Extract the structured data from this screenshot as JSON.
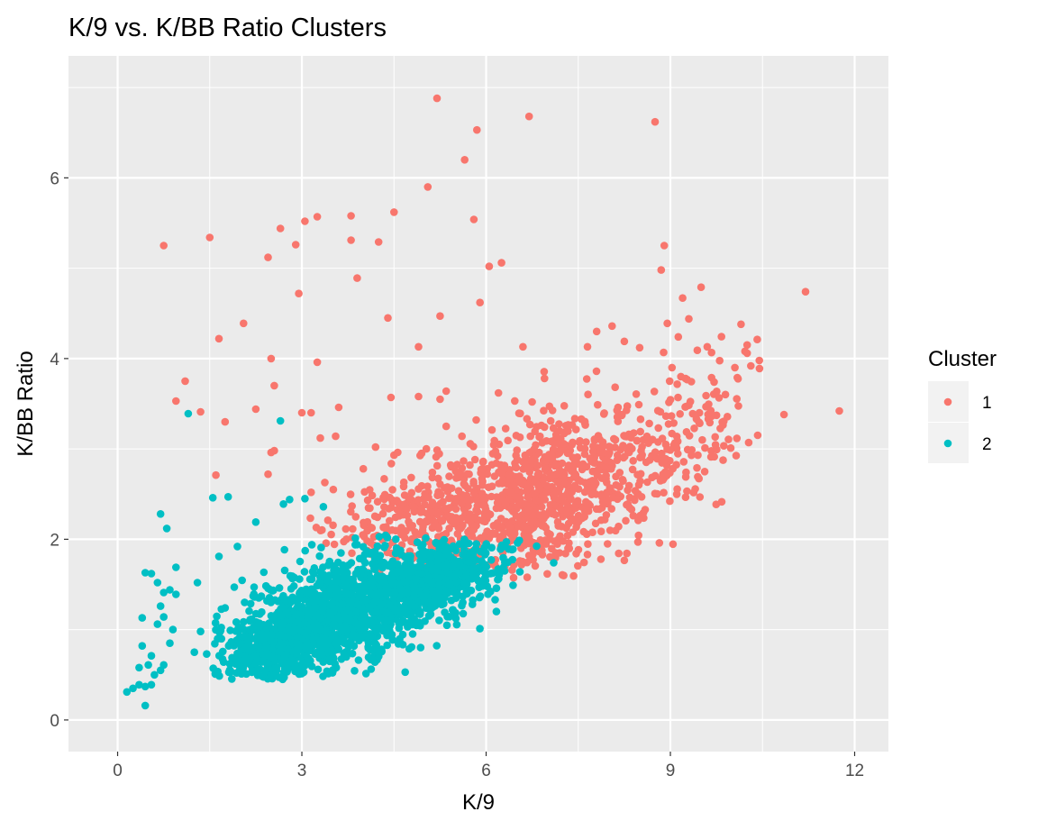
{
  "chart_data": {
    "type": "scatter",
    "title": "K/9 vs. K/BB Ratio Clusters",
    "xlabel": "K/9",
    "ylabel": "K/BB Ratio",
    "xlim": [
      -0.8,
      12.55
    ],
    "ylim": [
      -0.35,
      7.35
    ],
    "x_ticks": [
      0,
      3,
      6,
      9,
      12
    ],
    "y_ticks": [
      0,
      2,
      4,
      6
    ],
    "x_tick_labels": [
      "0",
      "3",
      "6",
      "9",
      "12"
    ],
    "y_tick_labels": [
      "0",
      "2",
      "4",
      "6"
    ],
    "grid": true,
    "legend": {
      "title": "Cluster",
      "position": "right"
    },
    "series": [
      {
        "name": "1",
        "color": "#F8766D",
        "outliers": [
          [
            5.2,
            6.88
          ],
          [
            6.7,
            6.68
          ],
          [
            8.75,
            6.62
          ],
          [
            5.85,
            6.53
          ],
          [
            5.65,
            6.2
          ],
          [
            5.05,
            5.9
          ],
          [
            0.75,
            5.25
          ],
          [
            1.5,
            5.34
          ],
          [
            2.65,
            5.44
          ],
          [
            3.05,
            5.52
          ],
          [
            3.25,
            5.57
          ],
          [
            3.8,
            5.58
          ],
          [
            4.5,
            5.62
          ],
          [
            5.8,
            5.54
          ],
          [
            2.9,
            5.26
          ],
          [
            3.8,
            5.31
          ],
          [
            4.25,
            5.29
          ],
          [
            2.45,
            5.12
          ],
          [
            6.05,
            5.02
          ],
          [
            6.25,
            5.06
          ],
          [
            8.9,
            5.25
          ],
          [
            8.85,
            4.98
          ],
          [
            3.9,
            4.89
          ],
          [
            2.95,
            4.72
          ],
          [
            5.25,
            4.47
          ],
          [
            5.9,
            4.62
          ],
          [
            4.4,
            4.45
          ],
          [
            2.05,
            4.39
          ],
          [
            1.65,
            4.22
          ],
          [
            9.2,
            4.67
          ],
          [
            9.5,
            4.79
          ],
          [
            11.2,
            4.74
          ],
          [
            9.3,
            4.44
          ],
          [
            8.95,
            4.39
          ],
          [
            10.15,
            4.38
          ],
          [
            4.9,
            4.13
          ],
          [
            6.6,
            4.13
          ],
          [
            1.1,
            3.75
          ],
          [
            3.25,
            3.96
          ],
          [
            2.5,
            4.0
          ],
          [
            2.55,
            3.7
          ],
          [
            1.35,
            3.41
          ],
          [
            1.75,
            3.3
          ],
          [
            0.95,
            3.53
          ],
          [
            2.25,
            3.44
          ],
          [
            3.0,
            3.4
          ],
          [
            3.15,
            3.4
          ],
          [
            4.45,
            3.57
          ],
          [
            4.9,
            3.58
          ],
          [
            5.25,
            3.55
          ],
          [
            5.35,
            3.64
          ],
          [
            6.2,
            3.62
          ],
          [
            3.6,
            3.46
          ],
          [
            10.85,
            3.38
          ],
          [
            11.75,
            3.42
          ],
          [
            10.45,
            3.89
          ],
          [
            10.25,
            4.15
          ],
          [
            10.05,
            3.9
          ],
          [
            2.5,
            2.96
          ],
          [
            2.55,
            2.98
          ],
          [
            1.6,
            2.71
          ],
          [
            2.45,
            2.72
          ],
          [
            3.15,
            2.52
          ],
          [
            3.3,
            3.12
          ],
          [
            3.55,
            3.14
          ],
          [
            4.0,
            2.78
          ],
          [
            4.5,
            2.93
          ],
          [
            4.2,
            3.02
          ],
          [
            4.95,
            2.95
          ],
          [
            5.35,
            3.25
          ],
          [
            6.75,
            3.52
          ],
          [
            6.95,
            3.78
          ],
          [
            7.65,
            4.13
          ],
          [
            7.8,
            4.3
          ],
          [
            8.05,
            4.36
          ],
          [
            8.25,
            4.19
          ],
          [
            8.5,
            4.12
          ],
          [
            9.6,
            4.13
          ]
        ],
        "clusters": [
          {
            "cx": 6.9,
            "cy": 2.45,
            "sx": 1.05,
            "sy": 0.42,
            "n": 900,
            "xmin": 3.3,
            "xmax": 10.3,
            "ymin": 1.55,
            "ymax": 4.2
          },
          {
            "cx": 4.9,
            "cy": 2.3,
            "sx": 0.8,
            "sy": 0.25,
            "n": 220,
            "xmin": 3.0,
            "xmax": 7.0,
            "ymin": 1.75,
            "ymax": 3.0
          },
          {
            "cx": 9.4,
            "cy": 3.3,
            "sx": 0.55,
            "sy": 0.45,
            "n": 110,
            "xmin": 8.0,
            "xmax": 10.5,
            "ymin": 2.3,
            "ymax": 4.3
          }
        ]
      },
      {
        "name": "2",
        "color": "#00BFC4",
        "outliers": [
          [
            1.15,
            3.39
          ],
          [
            2.65,
            3.31
          ],
          [
            1.55,
            2.46
          ],
          [
            1.8,
            2.47
          ],
          [
            2.25,
            2.19
          ],
          [
            2.7,
            2.39
          ],
          [
            2.8,
            2.44
          ],
          [
            3.35,
            2.36
          ],
          [
            3.05,
            2.45
          ],
          [
            0.7,
            2.28
          ],
          [
            0.8,
            2.12
          ],
          [
            0.45,
            1.63
          ],
          [
            0.55,
            1.62
          ],
          [
            0.65,
            1.52
          ],
          [
            0.95,
            1.69
          ],
          [
            0.75,
            1.41
          ],
          [
            0.85,
            1.44
          ],
          [
            0.95,
            1.39
          ],
          [
            0.7,
            1.26
          ],
          [
            0.4,
            1.13
          ],
          [
            0.65,
            1.06
          ],
          [
            0.75,
            1.14
          ],
          [
            0.9,
            1.0
          ],
          [
            0.85,
            0.85
          ],
          [
            0.4,
            0.82
          ],
          [
            0.55,
            0.71
          ],
          [
            0.5,
            0.61
          ],
          [
            0.35,
            0.58
          ],
          [
            0.7,
            0.55
          ],
          [
            0.75,
            0.61
          ],
          [
            0.6,
            0.5
          ],
          [
            0.55,
            0.39
          ],
          [
            0.35,
            0.39
          ],
          [
            0.45,
            0.37
          ],
          [
            0.25,
            0.35
          ],
          [
            0.15,
            0.31
          ],
          [
            0.45,
            0.16
          ],
          [
            1.3,
            1.52
          ],
          [
            1.65,
            1.81
          ],
          [
            1.75,
            1.24
          ],
          [
            1.25,
            0.75
          ],
          [
            1.35,
            0.98
          ],
          [
            1.95,
            1.92
          ],
          [
            7.1,
            1.74
          ],
          [
            6.55,
            1.64
          ],
          [
            6.3,
            1.65
          ],
          [
            1.9,
            1.47
          ],
          [
            1.45,
            0.73
          ]
        ],
        "clusters": [
          {
            "cx": 3.6,
            "cy": 1.15,
            "sx": 0.9,
            "sy": 0.3,
            "n": 1300,
            "xmin": 1.5,
            "xmax": 6.8,
            "ymin": 0.45,
            "ymax": 2.05
          },
          {
            "cx": 5.2,
            "cy": 1.55,
            "sx": 0.6,
            "sy": 0.2,
            "n": 450,
            "xmin": 3.6,
            "xmax": 7.0,
            "ymin": 1.0,
            "ymax": 2.0
          },
          {
            "cx": 2.4,
            "cy": 0.8,
            "sx": 0.4,
            "sy": 0.18,
            "n": 230,
            "xmin": 1.5,
            "xmax": 3.6,
            "ymin": 0.45,
            "ymax": 1.5
          }
        ]
      }
    ]
  }
}
